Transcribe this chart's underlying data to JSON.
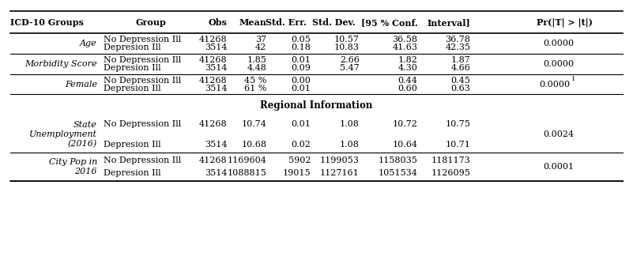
{
  "headers": [
    "ICD-10 Groups",
    "Group",
    "Obs",
    "Mean",
    "Std. Err.",
    "Std. Dev.",
    "[95 % Conf.",
    "Interval]",
    "Pr(|T| > |t|)"
  ],
  "rows": [
    {
      "group_label_lines": [
        "Age"
      ],
      "sub_rows": [
        [
          "No Depression Ill",
          "41268",
          "37",
          "0.05",
          "10.57",
          "36.58",
          "36.78"
        ],
        [
          "Depresion Ill",
          "3514",
          "42",
          "0.18",
          "10.83",
          "41.63",
          "42.35"
        ]
      ],
      "pvalue": "0.0000",
      "pvalue_super": "",
      "n_label_lines": 1
    },
    {
      "group_label_lines": [
        "Morbidity Score"
      ],
      "sub_rows": [
        [
          "No Depression Ill",
          "41268",
          "1.85",
          "0.01",
          "2.66",
          "1.82",
          "1.87"
        ],
        [
          "Depresion Ill",
          "3514",
          "4.48",
          "0.09",
          "5.47",
          "4.30",
          "4.66"
        ]
      ],
      "pvalue": "0.0000",
      "pvalue_super": "",
      "n_label_lines": 1
    },
    {
      "group_label_lines": [
        "Female"
      ],
      "sub_rows": [
        [
          "No Depression Ill",
          "41268",
          "45 %",
          "0.00",
          "",
          "0.44",
          "0.45"
        ],
        [
          "Depresion Ill",
          "3514",
          "61 %",
          "0.01",
          "",
          "0.60",
          "0.63"
        ]
      ],
      "pvalue": "0.0000",
      "pvalue_super": "1",
      "n_label_lines": 1
    },
    {
      "group_label_lines": [
        "State",
        "Unemployment",
        "(2016)"
      ],
      "sub_rows": [
        [
          "No Depression Ill",
          "41268",
          "10.74",
          "0.01",
          "1.08",
          "10.72",
          "10.75"
        ],
        [
          "Depresion Ill",
          "3514",
          "10.68",
          "0.02",
          "1.08",
          "10.64",
          "10.71"
        ]
      ],
      "pvalue": "0.0024",
      "pvalue_super": "",
      "n_label_lines": 3
    },
    {
      "group_label_lines": [
        "City Pop in",
        "2016"
      ],
      "sub_rows": [
        [
          "No Depression Ill",
          "41268",
          "1169604",
          "5902",
          "1199053",
          "1158035",
          "1181173"
        ],
        [
          "Depresion Ill",
          "3514",
          "1088815",
          "19015",
          "1127161",
          "1051534",
          "1126095"
        ]
      ],
      "pvalue": "0.0001",
      "pvalue_super": "",
      "n_label_lines": 2
    }
  ],
  "regional_info_label": "Regional Information",
  "regional_info_after_row": 2,
  "bg_color": "#ffffff",
  "font_size": 8.0
}
